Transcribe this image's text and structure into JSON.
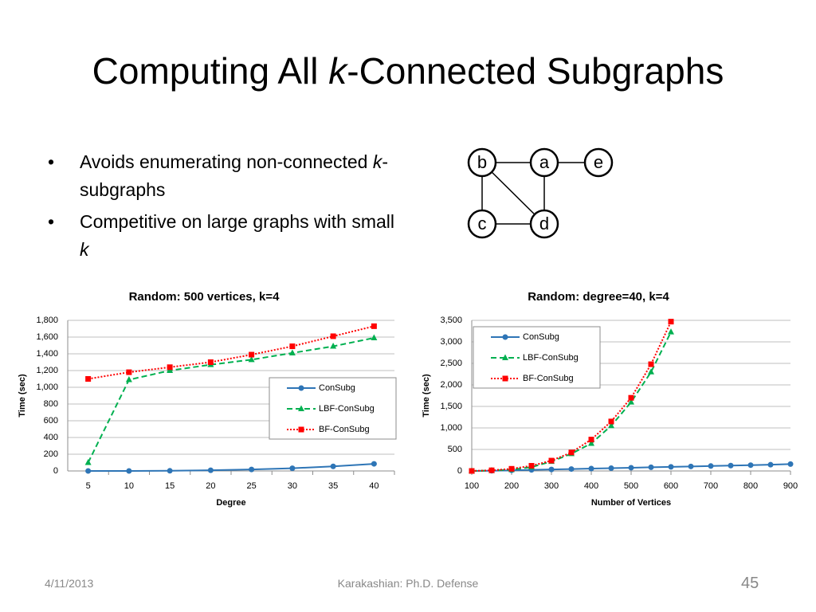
{
  "title_parts": [
    "Computing All ",
    "k",
    "-Connected Subgraphs"
  ],
  "bullets": [
    [
      "Avoids enumerating non-connected ",
      "k",
      "-subgraphs"
    ],
    [
      "Competitive on large graphs with small ",
      "k"
    ]
  ],
  "graph": {
    "nodes": [
      "b",
      "a",
      "e",
      "c",
      "d"
    ]
  },
  "chart_data": [
    {
      "type": "line",
      "title": "Random: 500 vertices, k=4",
      "x_label": "Degree",
      "y_label": "Time (sec)",
      "categories": [
        5,
        10,
        15,
        20,
        25,
        30,
        35,
        40
      ],
      "ylim": [
        0,
        1800
      ],
      "yticks": [
        0,
        200,
        400,
        600,
        800,
        {
          "value": 1000,
          "label": "1,000"
        },
        {
          "value": 1200,
          "label": "1,200"
        },
        {
          "value": 1400,
          "label": "1,400"
        },
        {
          "value": 1600,
          "label": "1,600"
        },
        {
          "value": 1800,
          "label": "1,800"
        }
      ],
      "grid": true,
      "legend": "lower right",
      "series": [
        {
          "name": "ConSubg",
          "color": "#2e75b6",
          "marker": "circle",
          "dash": "solid",
          "values": [
            0,
            0,
            2,
            8,
            18,
            32,
            55,
            85
          ]
        },
        {
          "name": "LBF-ConSubg",
          "color": "#00b050",
          "marker": "triangle",
          "dash": "dashed",
          "values": [
            100,
            1090,
            1200,
            1270,
            1330,
            1410,
            1490,
            1590
          ]
        },
        {
          "name": "BF-ConSubg",
          "color": "#ff0000",
          "marker": "square",
          "dash": "dotted",
          "values": [
            1100,
            1180,
            1240,
            1300,
            1390,
            1490,
            1610,
            1730
          ]
        }
      ]
    },
    {
      "type": "line",
      "title": "Random: degree=40, k=4",
      "x_label": "Number of Vertices",
      "y_label": "Time (sec)",
      "x": [
        100,
        150,
        200,
        250,
        300,
        350,
        400,
        450,
        500,
        550,
        600,
        650,
        700,
        750,
        800,
        850,
        900
      ],
      "xlim": [
        100,
        900
      ],
      "xticks": [
        100,
        200,
        300,
        400,
        500,
        600,
        700,
        800,
        900
      ],
      "ylim": [
        0,
        3500
      ],
      "yticks": [
        0,
        500,
        {
          "value": 1000,
          "label": "1,000"
        },
        {
          "value": 1500,
          "label": "1,500"
        },
        {
          "value": 2000,
          "label": "2,000"
        },
        {
          "value": 2500,
          "label": "2,500"
        },
        {
          "value": 3000,
          "label": "3,000"
        },
        {
          "value": 3500,
          "label": "3,500"
        }
      ],
      "grid": true,
      "legend": "upper left",
      "series": [
        {
          "name": "ConSubg",
          "color": "#2e75b6",
          "marker": "circle",
          "dash": "solid",
          "values": [
            0,
            5,
            15,
            25,
            35,
            45,
            55,
            65,
            75,
            85,
            95,
            105,
            115,
            125,
            135,
            145,
            160
          ]
        },
        {
          "name": "LBF-ConSubg",
          "color": "#00b050",
          "marker": "triangle",
          "dash": "dashed",
          "values": [
            0,
            10,
            30,
            90,
            220,
            400,
            640,
            1050,
            1600,
            2300,
            3230,
            null,
            null,
            null,
            null,
            null,
            null
          ]
        },
        {
          "name": "BF-ConSubg",
          "color": "#ff0000",
          "marker": "square",
          "dash": "dotted",
          "values": [
            0,
            15,
            50,
            120,
            240,
            430,
            730,
            1150,
            1700,
            2480,
            3470,
            null,
            null,
            null,
            null,
            null,
            null
          ]
        }
      ]
    }
  ],
  "footer": {
    "date": "4/11/2013",
    "center": "Karakashian: Ph.D. Defense",
    "page": "45"
  }
}
